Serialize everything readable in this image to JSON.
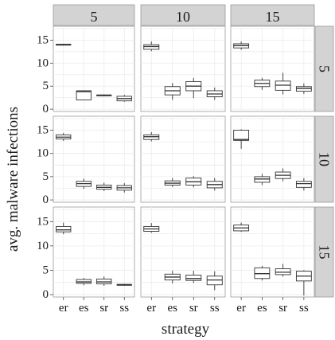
{
  "chart_data": {
    "type": "boxplot",
    "xlabel": "strategy",
    "ylabel": "avg. malware infections",
    "column_facet_labels": [
      "5",
      "10",
      "15"
    ],
    "row_facet_labels": [
      "5",
      "10",
      "15"
    ],
    "categories": [
      "er",
      "es",
      "sr",
      "ss"
    ],
    "ylim": [
      -0.5,
      18
    ],
    "yticks": [
      0,
      5,
      10,
      15
    ],
    "grid": true,
    "panels": [
      {
        "row": "5",
        "col": "5",
        "boxes": [
          {
            "cat": "er",
            "min": 13.8,
            "q1": 13.9,
            "median": 14.0,
            "q3": 14.1,
            "max": 14.2
          },
          {
            "cat": "es",
            "min": 1.9,
            "q1": 2.0,
            "median": 3.8,
            "q3": 4.0,
            "max": 4.1
          },
          {
            "cat": "sr",
            "min": 2.8,
            "q1": 2.9,
            "median": 3.0,
            "q3": 3.1,
            "max": 3.2
          },
          {
            "cat": "ss",
            "min": 1.6,
            "q1": 1.8,
            "median": 2.3,
            "q3": 2.8,
            "max": 3.1
          }
        ]
      },
      {
        "row": "5",
        "col": "10",
        "boxes": [
          {
            "cat": "er",
            "min": 12.6,
            "q1": 13.0,
            "median": 13.6,
            "q3": 14.0,
            "max": 14.7
          },
          {
            "cat": "es",
            "min": 2.0,
            "q1": 3.1,
            "median": 4.0,
            "q3": 4.9,
            "max": 5.7
          },
          {
            "cat": "sr",
            "min": 2.4,
            "q1": 4.0,
            "median": 5.0,
            "q3": 6.0,
            "max": 6.8
          },
          {
            "cat": "ss",
            "min": 2.0,
            "q1": 2.7,
            "median": 3.3,
            "q3": 4.0,
            "max": 4.7
          }
        ]
      },
      {
        "row": "5",
        "col": "15",
        "boxes": [
          {
            "cat": "er",
            "min": 12.9,
            "q1": 13.3,
            "median": 13.8,
            "q3": 14.2,
            "max": 14.7
          },
          {
            "cat": "es",
            "min": 4.2,
            "q1": 4.9,
            "median": 5.6,
            "q3": 6.3,
            "max": 6.8
          },
          {
            "cat": "sr",
            "min": 3.2,
            "q1": 4.1,
            "median": 5.2,
            "q3": 6.1,
            "max": 7.9
          },
          {
            "cat": "ss",
            "min": 3.3,
            "q1": 3.9,
            "median": 4.5,
            "q3": 4.9,
            "max": 5.6
          }
        ]
      },
      {
        "row": "10",
        "col": "5",
        "boxes": [
          {
            "cat": "er",
            "min": 12.7,
            "q1": 13.1,
            "median": 13.5,
            "q3": 14.0,
            "max": 14.4
          },
          {
            "cat": "es",
            "min": 2.4,
            "q1": 2.9,
            "median": 3.5,
            "q3": 4.0,
            "max": 4.6
          },
          {
            "cat": "sr",
            "min": 1.9,
            "q1": 2.3,
            "median": 2.7,
            "q3": 3.2,
            "max": 3.7
          },
          {
            "cat": "ss",
            "min": 1.6,
            "q1": 2.1,
            "median": 2.6,
            "q3": 3.1,
            "max": 3.6
          }
        ]
      },
      {
        "row": "10",
        "col": "10",
        "boxes": [
          {
            "cat": "er",
            "min": 12.6,
            "q1": 13.0,
            "median": 13.6,
            "q3": 14.0,
            "max": 14.6
          },
          {
            "cat": "es",
            "min": 2.8,
            "q1": 3.2,
            "median": 3.6,
            "q3": 4.1,
            "max": 4.7
          },
          {
            "cat": "sr",
            "min": 2.7,
            "q1": 3.2,
            "median": 3.9,
            "q3": 4.7,
            "max": 5.1
          },
          {
            "cat": "ss",
            "min": 2.0,
            "q1": 2.6,
            "median": 3.3,
            "q3": 4.0,
            "max": 4.7
          }
        ]
      },
      {
        "row": "10",
        "col": "15",
        "boxes": [
          {
            "cat": "er",
            "min": 11.0,
            "q1": 12.8,
            "median": 13.0,
            "q3": 15.0,
            "max": 15.2
          },
          {
            "cat": "es",
            "min": 3.2,
            "q1": 3.8,
            "median": 4.5,
            "q3": 5.0,
            "max": 5.6
          },
          {
            "cat": "sr",
            "min": 4.0,
            "q1": 4.6,
            "median": 5.3,
            "q3": 6.0,
            "max": 6.8
          },
          {
            "cat": "ss",
            "min": 2.0,
            "q1": 2.7,
            "median": 3.5,
            "q3": 4.0,
            "max": 4.7
          }
        ]
      },
      {
        "row": "15",
        "col": "5",
        "boxes": [
          {
            "cat": "er",
            "min": 12.4,
            "q1": 12.9,
            "median": 13.3,
            "q3": 14.0,
            "max": 14.8
          },
          {
            "cat": "es",
            "min": 1.9,
            "q1": 2.3,
            "median": 2.6,
            "q3": 3.1,
            "max": 3.4
          },
          {
            "cat": "sr",
            "min": 1.8,
            "q1": 2.2,
            "median": 2.6,
            "q3": 3.2,
            "max": 3.7
          },
          {
            "cat": "ss",
            "min": 1.8,
            "q1": 1.9,
            "median": 2.0,
            "q3": 2.1,
            "max": 2.2
          }
        ]
      },
      {
        "row": "15",
        "col": "10",
        "boxes": [
          {
            "cat": "er",
            "min": 12.7,
            "q1": 13.0,
            "median": 13.5,
            "q3": 14.0,
            "max": 14.7
          },
          {
            "cat": "es",
            "min": 2.3,
            "q1": 3.0,
            "median": 3.6,
            "q3": 4.2,
            "max": 4.9
          },
          {
            "cat": "sr",
            "min": 2.4,
            "q1": 2.9,
            "median": 3.3,
            "q3": 4.0,
            "max": 4.9
          },
          {
            "cat": "ss",
            "min": 0.9,
            "q1": 2.0,
            "median": 3.0,
            "q3": 3.8,
            "max": 4.8
          }
        ]
      },
      {
        "row": "15",
        "col": "15",
        "boxes": [
          {
            "cat": "er",
            "min": 12.9,
            "q1": 13.1,
            "median": 13.7,
            "q3": 14.3,
            "max": 14.8
          },
          {
            "cat": "es",
            "min": 2.9,
            "q1": 3.3,
            "median": 4.3,
            "q3": 5.5,
            "max": 5.9
          },
          {
            "cat": "sr",
            "min": 3.7,
            "q1": 4.1,
            "median": 4.6,
            "q3": 5.3,
            "max": 6.3
          },
          {
            "cat": "ss",
            "min": -0.2,
            "q1": 2.8,
            "median": 3.8,
            "q3": 4.8,
            "max": 5.0
          }
        ]
      }
    ]
  }
}
